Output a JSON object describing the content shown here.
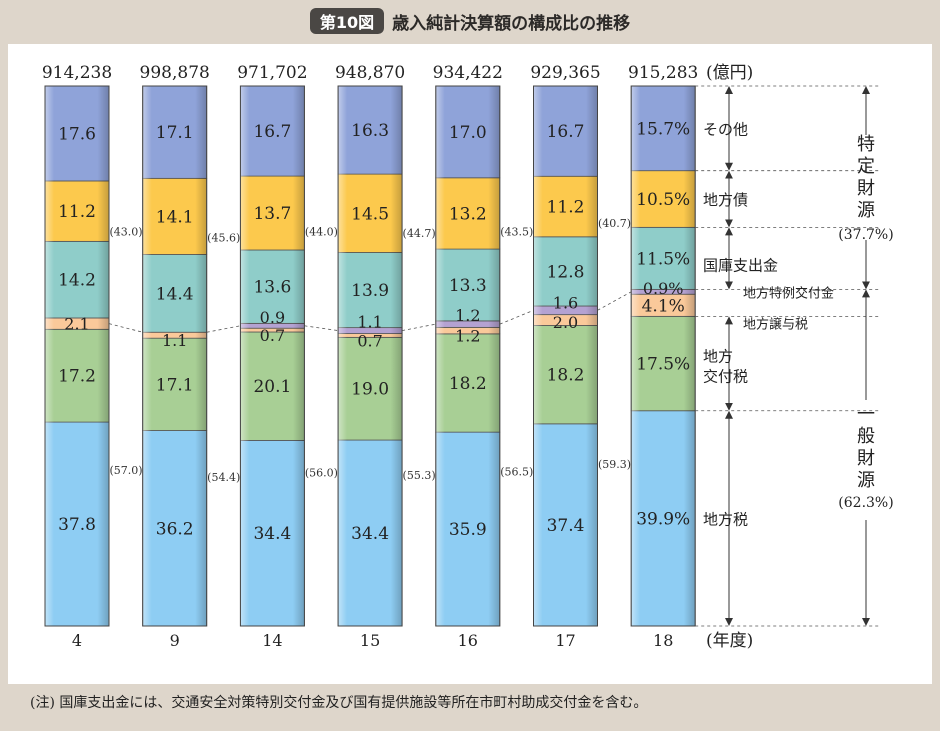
{
  "header": {
    "badge": "第10図",
    "title": "歳入純計決算額の構成比の推移"
  },
  "note": "(注) 国庫支出金には、交通安全対策特別交付金及び国有提供施設等所在市町村助成交付金を含む。",
  "colors": {
    "chiho_zei": "#8ecdf3",
    "chiho_kofuzei": "#a8cf95",
    "chiho_joyozei": "#fac99a",
    "chiho_tokurei": "#b4a2d2",
    "kokko": "#8fcdc9",
    "chihosai": "#fcc94d",
    "sonota": "#8fa3d9"
  },
  "chart_data": {
    "type": "bar",
    "stacked": true,
    "normalized": true,
    "categories": [
      "4",
      "9",
      "14",
      "15",
      "16",
      "17",
      "18"
    ],
    "totals": [
      "914,238",
      "998,878",
      "971,702",
      "948,870",
      "934,422",
      "929,365",
      "915,283"
    ],
    "total_unit": "(億円)",
    "x_unit": "(年度)",
    "series": [
      {
        "key": "chiho_zei",
        "values": [
          37.8,
          36.2,
          34.4,
          34.4,
          35.9,
          37.4,
          39.9
        ],
        "labels": [
          "37.8",
          "36.2",
          "34.4",
          "34.4",
          "35.9",
          "37.4",
          "39.9%"
        ]
      },
      {
        "key": "chiho_kofuzei",
        "values": [
          17.2,
          17.1,
          20.1,
          19.0,
          18.2,
          18.2,
          17.5
        ],
        "labels": [
          "17.2",
          "17.1",
          "20.1",
          "19.0",
          "18.2",
          "18.2",
          "17.5%"
        ]
      },
      {
        "key": "chiho_joyozei",
        "values": [
          2.1,
          1.1,
          0.7,
          0.7,
          1.2,
          2.0,
          4.1
        ],
        "labels": [
          "2.1",
          "1.1",
          "0.7",
          "0.7",
          "1.2",
          "2.0",
          "4.1%"
        ]
      },
      {
        "key": "chiho_tokurei",
        "values": [
          0,
          0,
          0.9,
          1.1,
          1.2,
          1.6,
          0.9
        ],
        "labels": [
          "",
          "",
          "0.9",
          "1.1",
          "1.2",
          "1.6",
          "0.9%"
        ]
      },
      {
        "key": "kokko",
        "values": [
          14.2,
          14.4,
          13.6,
          13.9,
          13.3,
          12.8,
          11.5
        ],
        "labels": [
          "14.2",
          "14.4",
          "13.6",
          "13.9",
          "13.3",
          "12.8",
          "11.5%"
        ]
      },
      {
        "key": "chihosai",
        "values": [
          11.2,
          14.1,
          13.7,
          14.5,
          13.2,
          11.2,
          10.5
        ],
        "labels": [
          "11.2",
          "14.1",
          "13.7",
          "14.5",
          "13.2",
          "11.2",
          "10.5%"
        ]
      },
      {
        "key": "sonota",
        "values": [
          17.6,
          17.1,
          16.7,
          16.3,
          17.0,
          16.7,
          15.7
        ],
        "labels": [
          "17.6",
          "17.1",
          "16.7",
          "16.3",
          "17.0",
          "16.7",
          "15.7%"
        ]
      }
    ],
    "tokutei_zaigen_labels": [
      "(43.0)",
      "(45.6)",
      "(44.0)",
      "(44.7)",
      "(43.5)",
      "(40.7)"
    ],
    "ippan_zaigen_labels": [
      "(57.0)",
      "(54.4)",
      "(56.0)",
      "(55.3)",
      "(56.5)",
      "(59.3)"
    ],
    "series_labels": {
      "sonota": "その他",
      "chihosai": "地方債",
      "kokko": "国庫支出金",
      "chiho_tokurei": "地方特例交付金",
      "chiho_joyozei": "地方譲与税",
      "chiho_kofuzei_line1": "地方",
      "chiho_kofuzei_line2": "交付税",
      "chiho_zei": "地方税"
    },
    "groups": {
      "tokutei": {
        "c1": "特",
        "c2": "定",
        "c3": "財",
        "c4": "源",
        "pct": "(37.7%)"
      },
      "ippan": {
        "c1": "一",
        "c2": "般",
        "c3": "財",
        "c4": "源",
        "pct": "(62.3%)"
      }
    }
  }
}
